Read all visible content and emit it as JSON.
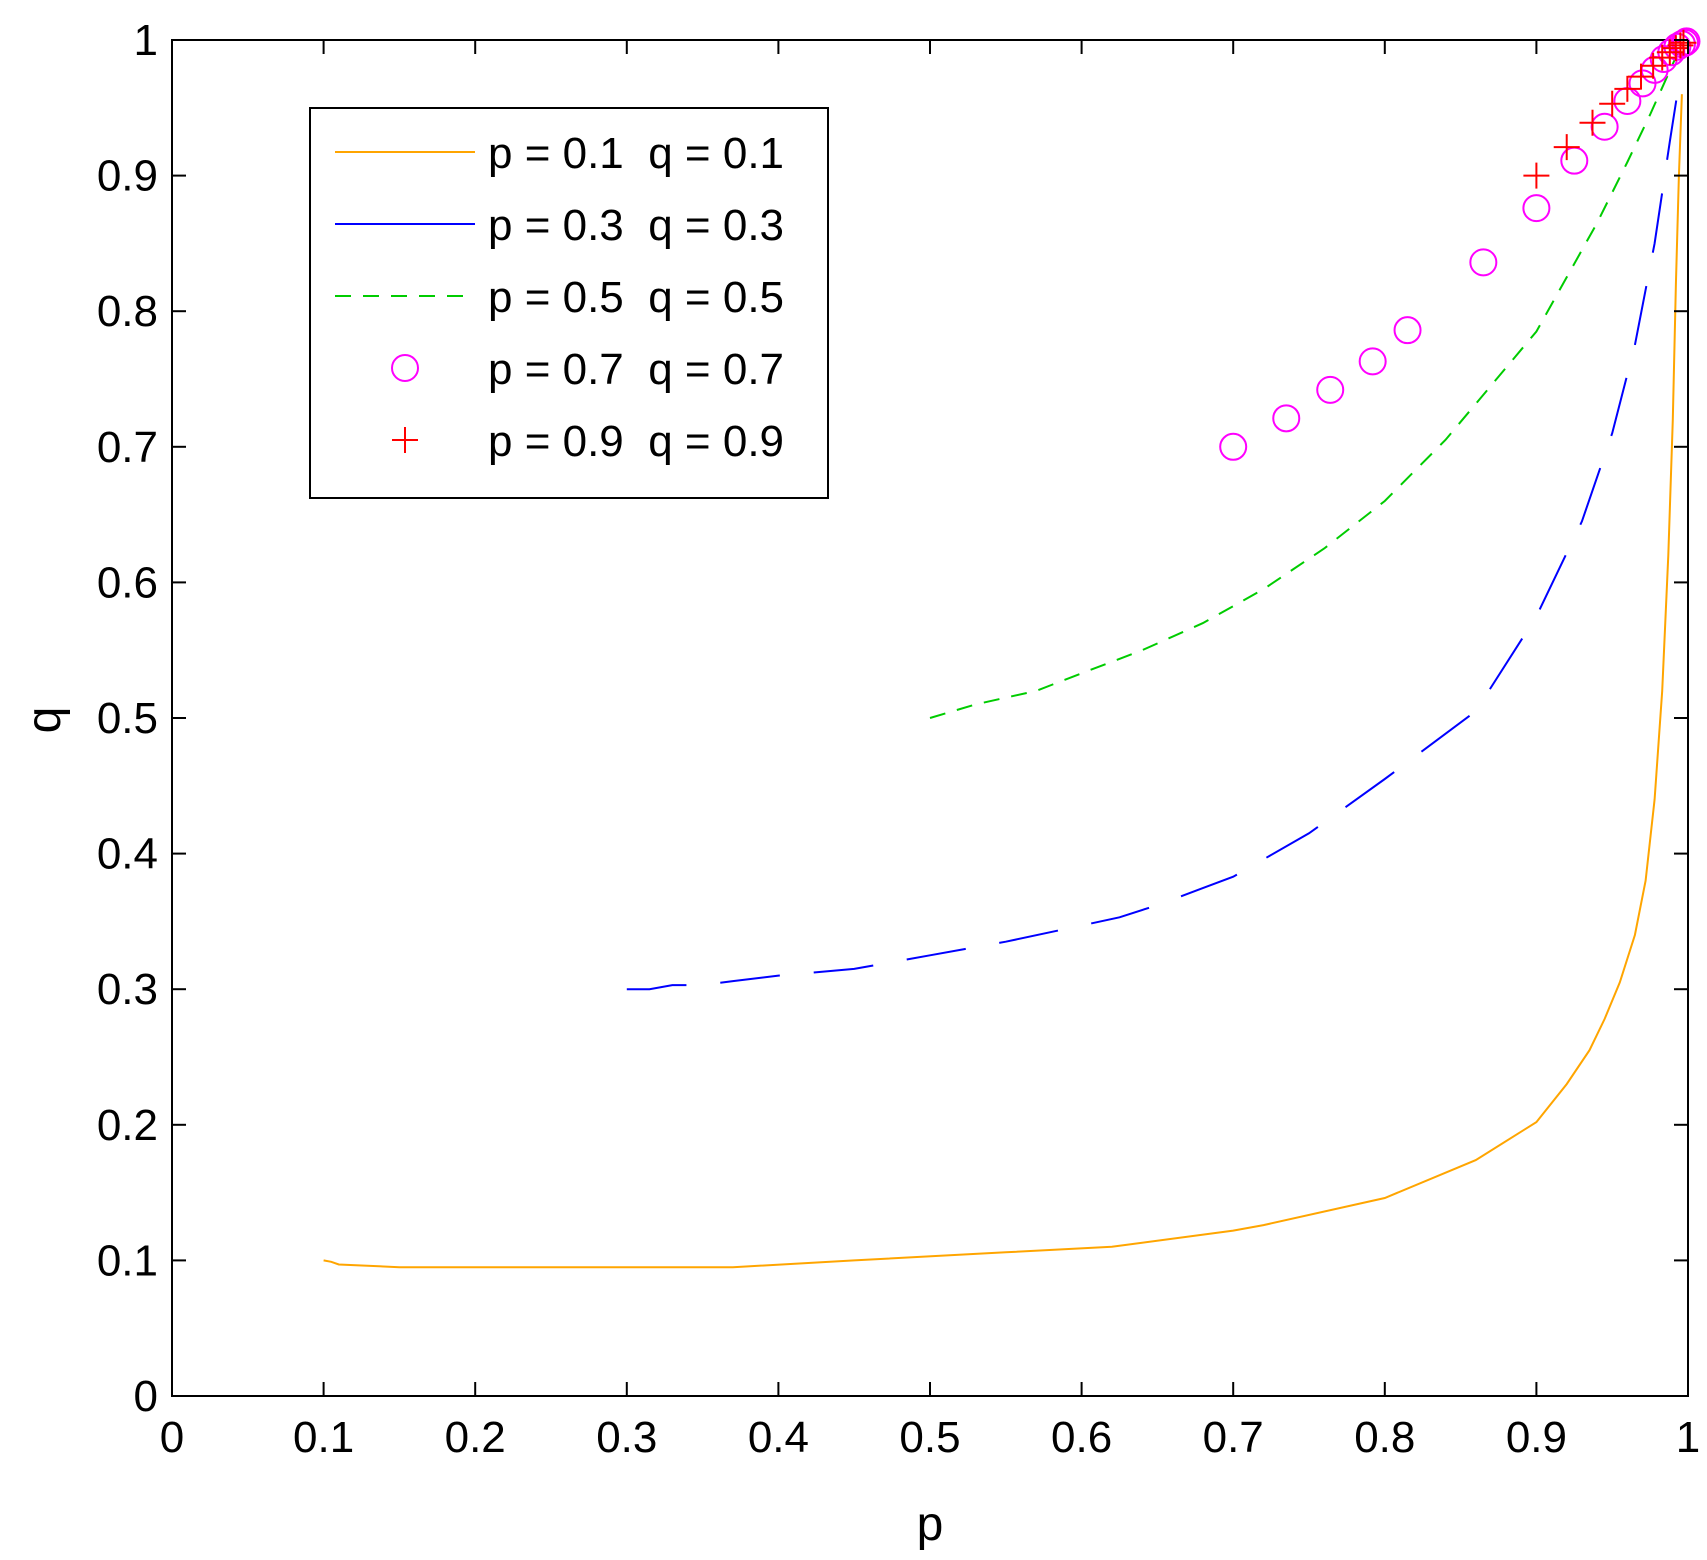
{
  "chart_data": {
    "type": "line",
    "title": "",
    "xlabel": "p",
    "ylabel": "q",
    "xlim": [
      0,
      1
    ],
    "ylim": [
      0,
      1
    ],
    "xticks": [
      "0",
      "0.1",
      "0.2",
      "0.3",
      "0.4",
      "0.5",
      "0.6",
      "0.7",
      "0.8",
      "0.9",
      "1"
    ],
    "yticks": [
      "0",
      "0.1",
      "0.2",
      "0.3",
      "0.4",
      "0.5",
      "0.6",
      "0.7",
      "0.8",
      "0.9",
      "1"
    ],
    "grid": false,
    "legend_position": "top-left",
    "series": [
      {
        "name": "p = 0.1  q = 0.1",
        "style": "solid",
        "marker": "none",
        "color": "#ffa500",
        "x": [
          0.1,
          0.105,
          0.11,
          0.15,
          0.2,
          0.3,
          0.37,
          0.45,
          0.55,
          0.62,
          0.7,
          0.72,
          0.8,
          0.86,
          0.9,
          0.92,
          0.935,
          0.945,
          0.955,
          0.965,
          0.972,
          0.978,
          0.983,
          0.987,
          0.99,
          0.992,
          0.994,
          0.996
        ],
        "y": [
          0.1,
          0.099,
          0.097,
          0.095,
          0.095,
          0.095,
          0.095,
          0.1,
          0.106,
          0.11,
          0.122,
          0.126,
          0.146,
          0.174,
          0.202,
          0.23,
          0.255,
          0.278,
          0.305,
          0.34,
          0.38,
          0.44,
          0.52,
          0.62,
          0.72,
          0.82,
          0.9,
          0.96
        ]
      },
      {
        "name": "p = 0.3  q = 0.3",
        "style": "long-dash",
        "marker": "none",
        "color": "#0000ff",
        "x": [
          0.3,
          0.315,
          0.33,
          0.35,
          0.37,
          0.4,
          0.45,
          0.5,
          0.55,
          0.6,
          0.625,
          0.65,
          0.7,
          0.75,
          0.8,
          0.86,
          0.9,
          0.93,
          0.95,
          0.965,
          0.978,
          0.988,
          0.995
        ],
        "y": [
          0.3,
          0.3,
          0.303,
          0.303,
          0.306,
          0.31,
          0.315,
          0.325,
          0.335,
          0.347,
          0.353,
          0.362,
          0.383,
          0.415,
          0.455,
          0.505,
          0.575,
          0.645,
          0.71,
          0.775,
          0.85,
          0.925,
          0.975
        ]
      },
      {
        "name": "p = 0.5  q = 0.5",
        "style": "dashed",
        "marker": "none",
        "color": "#00cc00",
        "x": [
          0.5,
          0.53,
          0.57,
          0.6,
          0.64,
          0.68,
          0.72,
          0.76,
          0.8,
          0.84,
          0.87,
          0.9,
          0.92,
          0.94,
          0.96,
          0.975,
          0.985,
          0.993
        ],
        "y": [
          0.5,
          0.51,
          0.52,
          0.533,
          0.55,
          0.57,
          0.595,
          0.625,
          0.66,
          0.705,
          0.745,
          0.785,
          0.825,
          0.865,
          0.91,
          0.945,
          0.97,
          0.99
        ]
      },
      {
        "name": "p = 0.7  q = 0.7",
        "style": "none",
        "marker": "circle",
        "color": "#ff00ff",
        "x": [
          0.7,
          0.735,
          0.764,
          0.792,
          0.815,
          0.865,
          0.9,
          0.925,
          0.945,
          0.96,
          0.97,
          0.978,
          0.984,
          0.989,
          0.993,
          0.996,
          0.998,
          0.999
        ],
        "y": [
          0.7,
          0.721,
          0.742,
          0.763,
          0.786,
          0.836,
          0.876,
          0.911,
          0.936,
          0.955,
          0.968,
          0.978,
          0.986,
          0.991,
          0.995,
          0.997,
          0.998,
          0.999
        ]
      },
      {
        "name": "p = 0.9  q = 0.9",
        "style": "none",
        "marker": "plus",
        "color": "#ff0000",
        "x": [
          0.9,
          0.92,
          0.937,
          0.95,
          0.96,
          0.969,
          0.977,
          0.983,
          0.988,
          0.992,
          0.995,
          0.997
        ],
        "y": [
          0.9,
          0.921,
          0.939,
          0.953,
          0.964,
          0.973,
          0.981,
          0.987,
          0.991,
          0.994,
          0.996,
          0.998
        ]
      }
    ]
  }
}
